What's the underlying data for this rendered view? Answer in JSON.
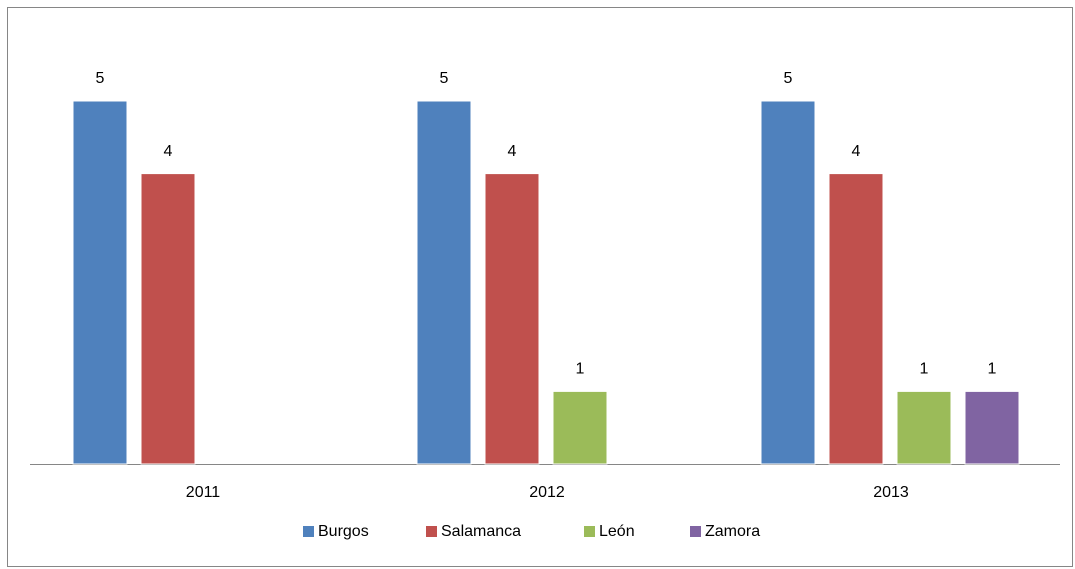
{
  "chart_data": {
    "type": "bar",
    "categories": [
      "2011",
      "2012",
      "2013"
    ],
    "series": [
      {
        "name": "Burgos",
        "color": "#4f81bd",
        "values": [
          5,
          5,
          5
        ]
      },
      {
        "name": "Salamanca",
        "color": "#c0504d",
        "values": [
          4,
          4,
          4
        ]
      },
      {
        "name": "León",
        "color": "#9bbb59",
        "values": [
          null,
          1,
          1
        ]
      },
      {
        "name": "Zamora",
        "color": "#8064a2",
        "values": [
          null,
          null,
          1
        ]
      }
    ],
    "ylim": [
      0,
      5
    ],
    "legend": "bottom"
  }
}
